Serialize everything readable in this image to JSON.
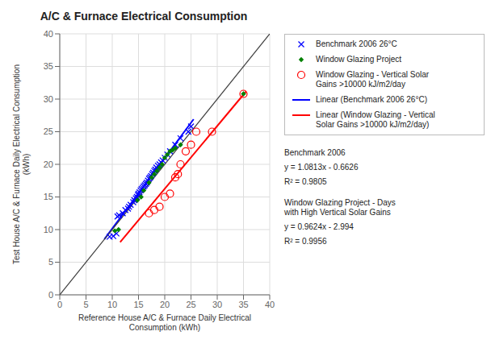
{
  "chart_data": {
    "type": "scatter",
    "title": "A/C & Furnace Electrical Consumption",
    "xlabel": "Reference House A/C & Furnace Daily Electrical\nConsumption (kWh)",
    "ylabel": "Test House A/C & Furnace Daily Electrical Consumption\n(kWh)",
    "xlim": [
      0,
      40
    ],
    "ylim": [
      0,
      40
    ],
    "xticks": [
      0,
      5,
      10,
      15,
      20,
      25,
      30,
      35,
      40
    ],
    "yticks": [
      0,
      5,
      10,
      15,
      20,
      25,
      30,
      35,
      40
    ],
    "grid": true,
    "legend": "upper right",
    "series": [
      {
        "name": "Benchmark 2006 26°C",
        "type": "scatter",
        "marker": "x",
        "color": "#0000FF",
        "x": [
          9.5,
          10.2,
          10.8,
          11.0,
          11.3,
          12.0,
          12.5,
          13.0,
          13.2,
          13.5,
          14.0,
          14.2,
          14.5,
          14.7,
          14.9,
          15.0,
          15.2,
          15.4,
          15.6,
          15.8,
          16.0,
          16.2,
          16.4,
          16.6,
          16.8,
          17.0,
          17.2,
          17.4,
          17.6,
          17.8,
          18.0,
          18.2,
          18.4,
          18.7,
          19.0,
          19.3,
          19.6,
          20.0,
          20.5,
          21.0,
          22.0,
          23.0,
          24.5,
          25.0
        ],
        "values": [
          8.9,
          9.0,
          9.4,
          12.0,
          12.2,
          12.5,
          13.0,
          13.2,
          13.5,
          13.8,
          14.2,
          14.5,
          14.8,
          15.0,
          15.3,
          15.5,
          15.7,
          16.0,
          16.2,
          16.4,
          16.6,
          16.8,
          17.0,
          17.2,
          17.5,
          17.8,
          18.0,
          18.2,
          18.5,
          18.7,
          19.0,
          19.2,
          19.5,
          19.8,
          20.0,
          20.3,
          20.6,
          21.0,
          21.5,
          22.0,
          23.0,
          24.0,
          25.0,
          25.8
        ]
      },
      {
        "name": "Window Glazing Project",
        "type": "scatter",
        "marker": "diamond",
        "color": "#008000",
        "x": [
          10.5,
          11.2,
          14.8,
          15.5,
          16.0,
          17.0,
          17.5,
          18.0,
          18.5,
          19.0,
          19.5,
          20.0,
          20.5,
          21.0,
          21.5,
          22.0,
          23.0,
          35.0
        ],
        "values": [
          9.8,
          10.0,
          14.5,
          15.0,
          16.0,
          17.2,
          18.0,
          18.5,
          19.0,
          19.5,
          20.0,
          21.0,
          21.5,
          22.0,
          22.2,
          22.5,
          23.0,
          30.8
        ]
      },
      {
        "name": "Window Glazing - Vertical Solar\nGains >10000 kJ/m2/day",
        "type": "scatter",
        "marker": "open_circle",
        "color": "#FF0000",
        "x": [
          17.0,
          18.0,
          19.0,
          20.0,
          21.0,
          22.0,
          22.5,
          23.0,
          24.0,
          25.0,
          26.0,
          29.0,
          35.0
        ],
        "values": [
          12.5,
          13.0,
          13.5,
          15.0,
          15.5,
          18.0,
          18.5,
          20.0,
          22.0,
          23.0,
          25.0,
          25.0,
          30.8
        ]
      },
      {
        "name": "Linear (Benchmark 2006 26°C)",
        "type": "line",
        "line_style": "solid",
        "color": "#0000FF",
        "x": [
          8.5,
          25.5
        ],
        "values": [
          8.52845,
          26.91055
        ]
      },
      {
        "name": "Linear (Window Glazing - Vertical\nSolar Gains >10000 kJ/m2/day)",
        "type": "line",
        "line_style": "solid",
        "color": "#FF0000",
        "x": [
          11.5,
          35.5
        ],
        "values": [
          8.0736,
          31.1712
        ]
      },
      {
        "type": "line",
        "line_style": "solid",
        "color": "#404040",
        "x": [
          0,
          40
        ],
        "values": [
          0,
          40
        ]
      }
    ],
    "annotations": [
      "Benchmark 2006",
      "y = 1.0813x - 0.6626",
      "R² = 0.9805",
      "Window Glazing Project - Days\nwith High Vertical Solar Gains",
      "y = 0.9624x - 2.994",
      "R² = 0.9956"
    ]
  }
}
